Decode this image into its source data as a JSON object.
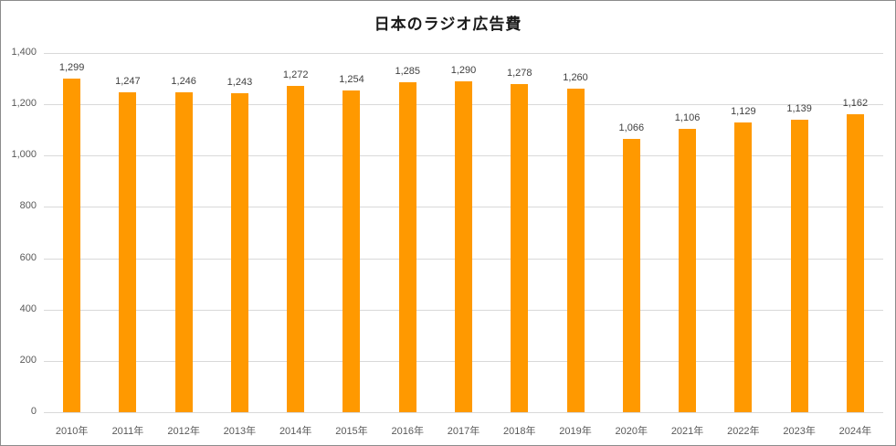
{
  "chart_data": {
    "type": "bar",
    "title": "日本のラジオ広告費",
    "xlabel": "",
    "ylabel": "",
    "ylim": [
      0,
      1400
    ],
    "yticks": [
      "0",
      "200",
      "400",
      "600",
      "800",
      "1,000",
      "1,200",
      "1,400"
    ],
    "grid": true,
    "legend": null,
    "bar_color": "#ff9900",
    "categories": [
      "2010年",
      "2011年",
      "2012年",
      "2013年",
      "2014年",
      "2015年",
      "2016年",
      "2017年",
      "2018年",
      "2019年",
      "2020年",
      "2021年",
      "2022年",
      "2023年",
      "2024年"
    ],
    "values": [
      1299,
      1247,
      1246,
      1243,
      1272,
      1254,
      1285,
      1290,
      1278,
      1260,
      1066,
      1106,
      1129,
      1139,
      1162
    ],
    "data_labels": [
      "1,299",
      "1,247",
      "1,246",
      "1,243",
      "1,272",
      "1,254",
      "1,285",
      "1,290",
      "1,278",
      "1,260",
      "1,066",
      "1,106",
      "1,129",
      "1,139",
      "1,162"
    ]
  }
}
